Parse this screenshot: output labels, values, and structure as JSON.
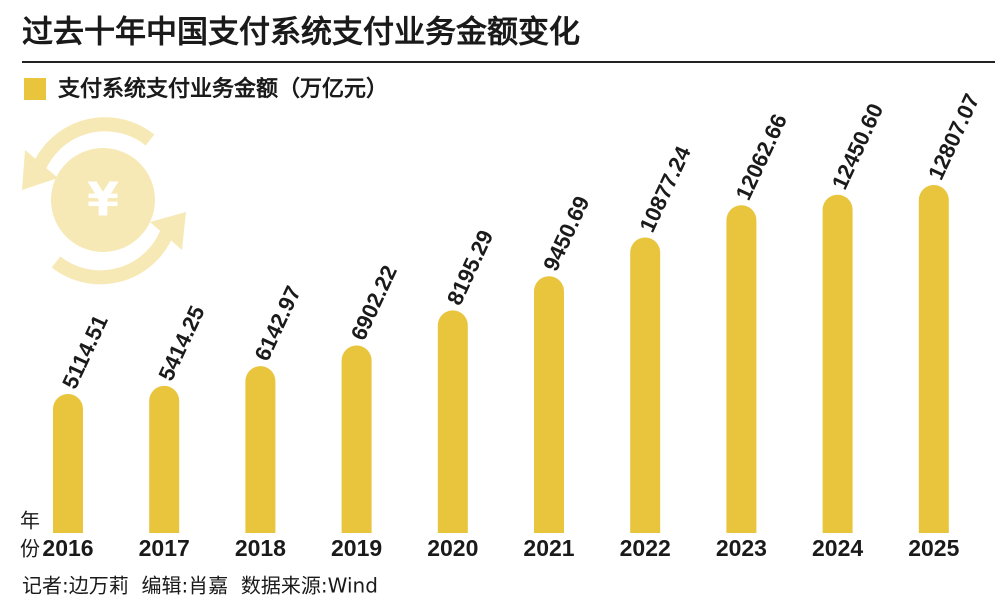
{
  "chart_data": {
    "type": "bar",
    "title": "过去十年中国支付系统支付业务金额变化",
    "x_label": "年份",
    "series": [
      {
        "name": "支付系统支付业务金额（万亿元）",
        "color": "#e8c53d",
        "values": [
          5114.51,
          5414.25,
          6142.97,
          6902.22,
          8195.29,
          9450.69,
          10877.24,
          12062.66,
          12450.6,
          12807.07
        ],
        "value_labels": [
          "5114.51",
          "5414.25",
          "6142.97",
          "6902.22",
          "8195.29",
          "9450.69",
          "10877.24",
          "12062.66",
          "12450.60",
          "12807.07"
        ]
      }
    ],
    "categories": [
      "2016",
      "2017",
      "2018",
      "2019",
      "2020",
      "2021",
      "2022",
      "2023",
      "2024",
      "2025"
    ],
    "footer": "记者:边万莉  编辑:肖嘉  数据来源:Wind"
  }
}
